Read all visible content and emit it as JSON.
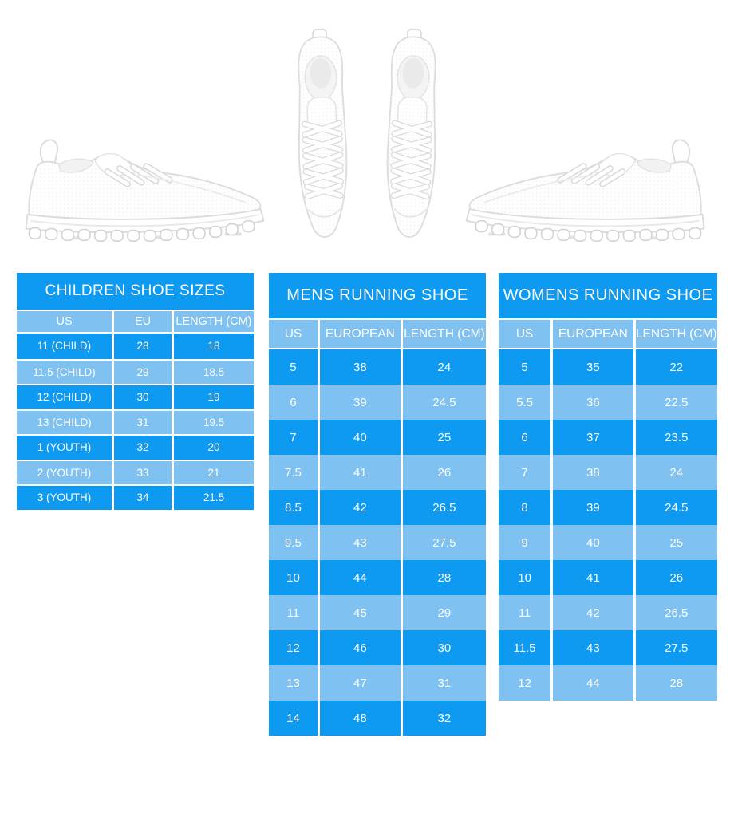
{
  "colors": {
    "row_dark": "#0D9AF0",
    "row_light": "#7FC2F2",
    "text": "#FFFFFF",
    "page_background": "#FFFFFF"
  },
  "images": {
    "left": "white-running-sneaker-side-view",
    "center": "white-running-sneaker-pair-top-view",
    "right": "white-running-sneaker-side-view-mirrored"
  },
  "tables": [
    {
      "id": "children",
      "title": "CHILDREN SHOE SIZES",
      "columns": [
        "US",
        "EU",
        "LENGTH (CM)"
      ],
      "rows": [
        [
          "11 (CHILD)",
          "28",
          "18"
        ],
        [
          "11.5 (CHILD)",
          "29",
          "18.5"
        ],
        [
          "12 (CHILD)",
          "30",
          "19"
        ],
        [
          "13 (CHILD)",
          "31",
          "19.5"
        ],
        [
          "1 (YOUTH)",
          "32",
          "20"
        ],
        [
          "2 (YOUTH)",
          "33",
          "21"
        ],
        [
          "3 (YOUTH)",
          "34",
          "21.5"
        ]
      ]
    },
    {
      "id": "mens",
      "title": "MENS RUNNING SHOE",
      "columns": [
        "US",
        "EUROPEAN",
        "LENGTH (CM)"
      ],
      "rows": [
        [
          "5",
          "38",
          "24"
        ],
        [
          "6",
          "39",
          "24.5"
        ],
        [
          "7",
          "40",
          "25"
        ],
        [
          "7.5",
          "41",
          "26"
        ],
        [
          "8.5",
          "42",
          "26.5"
        ],
        [
          "9.5",
          "43",
          "27.5"
        ],
        [
          "10",
          "44",
          "28"
        ],
        [
          "11",
          "45",
          "29"
        ],
        [
          "12",
          "46",
          "30"
        ],
        [
          "13",
          "47",
          "31"
        ],
        [
          "14",
          "48",
          "32"
        ]
      ]
    },
    {
      "id": "womens",
      "title": "WOMENS RUNNING SHOE",
      "columns": [
        "US",
        "EUROPEAN",
        "LENGTH (CM)"
      ],
      "rows": [
        [
          "5",
          "35",
          "22"
        ],
        [
          "5.5",
          "36",
          "22.5"
        ],
        [
          "6",
          "37",
          "23.5"
        ],
        [
          "7",
          "38",
          "24"
        ],
        [
          "8",
          "39",
          "24.5"
        ],
        [
          "9",
          "40",
          "25"
        ],
        [
          "10",
          "41",
          "26"
        ],
        [
          "11",
          "42",
          "26.5"
        ],
        [
          "11.5",
          "43",
          "27.5"
        ],
        [
          "12",
          "44",
          "28"
        ]
      ]
    }
  ]
}
